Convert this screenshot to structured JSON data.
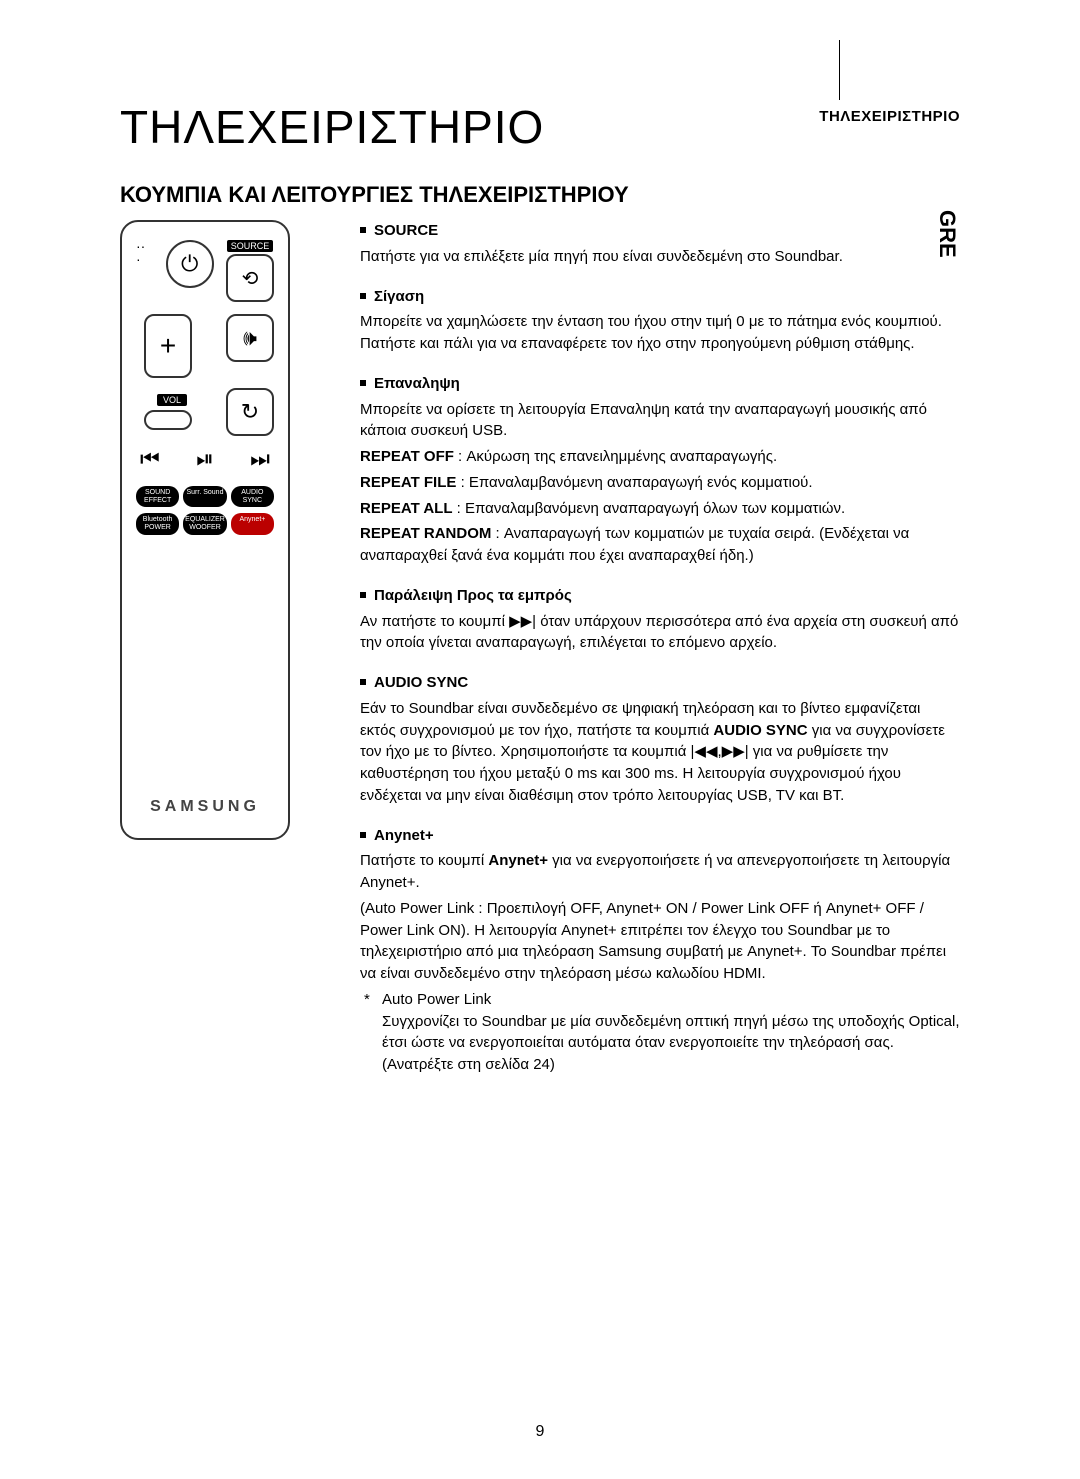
{
  "header_right": "ΤΗΛΕΧΕΙΡΙΣΤΗΡΙΟ",
  "side_tab": "GRE",
  "title": "ΤΗΛΕΧΕΙΡΙΣΤΗΡΙΟ",
  "subtitle": "ΚΟΥΜΠΙΑ ΚΑΙ ΛΕΙΤΟΥΡΓΙΕΣ ΤΗΛΕΧΕΙΡΙΣΤΗΡΙΟΥ",
  "remote": {
    "source_label": "SOURCE",
    "vol_label": "VOL",
    "brand": "SAMSUNG",
    "pills_row1": [
      "SOUND EFFECT",
      "Surr. Sound",
      "AUDIO SYNC"
    ],
    "pills_row2": [
      "Bluetooth POWER",
      "EQUALIZER WOOFER",
      "Anynet+"
    ]
  },
  "sections": {
    "source": {
      "label": "SOURCE",
      "body": "Πατήστε για να επιλέξετε μία πηγή που είναι συνδεδεμένη στο Soundbar."
    },
    "mute": {
      "label": "Σίγαση",
      "body": "Μπορείτε να χαμηλώσετε την ένταση του ήχου στην τιμή 0 με το πάτημα ενός κουμπιού. Πατήστε και πάλι για να επαναφέρετε τον ήχο στην προηγούμενη ρύθμιση στάθμης."
    },
    "repeat": {
      "label": "Επαναληψη",
      "body": "Μπορείτε να ορίσετε τη λειτουργία Επαναληψη κατά την αναπαραγωγή μουσικής από κάποια συσκευή USB.",
      "r_off_b": "REPEAT OFF",
      "r_off": " : Ακύρωση της επανειλημμένης αναπαραγωγής.",
      "r_file_b": "REPEAT FILE",
      "r_file": " : Επαναλαμβανόμενη αναπαραγωγή ενός κομματιού.",
      "r_all_b": "REPEAT ALL",
      "r_all": " : Επαναλαμβανόμενη αναπαραγωγή όλων των κομματιών.",
      "r_rand_b": "REPEAT RANDOM",
      "r_rand": " : Αναπαραγωγή των κομματιών με τυχαία σειρά. (Ενδέχεται να αναπαραχθεί ξανά ένα κομμάτι που έχει αναπαραχθεί ήδη.)"
    },
    "skip": {
      "label": "Παράλειψη Προς τα εμπρός",
      "body": "Αν πατήστε το κουμπί ▶▶| όταν υπάρχουν περισσότερα από ένα αρχεία στη συσκευή από την οποία γίνεται αναπαραγωγή, επιλέγεται το επόμενο αρχείο."
    },
    "audiosync": {
      "label": "AUDIO SYNC",
      "body1": "Εάν το Soundbar είναι συνδεδεμένο σε ψηφιακή τηλεόραση και το βίντεο εμφανίζεται εκτός συγχρονισμού με τον ήχο, πατήστε τα κουμπιά ",
      "bold1": "AUDIO SYNC",
      "body2": " για να συγχρονίσετε τον ήχο με το βίντεο. Χρησιμοποιήστε τα κουμπιά |◀◀,▶▶| για να ρυθμίσετε την καθυστέρηση του ήχου μεταξύ 0 ms και 300 ms. Η λειτουργία συγχρονισμού ήχου ενδέχεται να μην είναι διαθέσιμη στον τρόπο λειτουργίας USB, TV και BT."
    },
    "anynet": {
      "label": "Anynet+",
      "body1": "Πατήστε το κουμπί ",
      "bold1": "Anynet+",
      "body2": " για να ενεργοποιήσετε ή να απενεργοποιήσετε τη λειτουργία Anynet+.",
      "body3": "(Auto Power Link : Προεπιλογή OFF, Anynet+ ON / Power Link OFF ή Anynet+ OFF / Power Link ON). Η λειτουργία Anynet+ επιτρέπει τον έλεγχο του Soundbar με το τηλεχειριστήριο από μια τηλεόραση Samsung συμβατή με Anynet+. Το Soundbar πρέπει να είναι συνδεδεμένο στην τηλεόραση μέσω καλωδίου HDMI.",
      "note_star": "*",
      "note_title": "Auto Power Link",
      "note_body": "Συγχρονίζει το Soundbar με μία συνδεδεμένη οπτική πηγή μέσω της υποδοχής Optical, έτσι ώστε να ενεργοποιείται αυτόματα όταν ενεργοποιείτε την τηλεόρασή σας. (Ανατρέξτε στη σελίδα 24)"
    }
  },
  "page_number": "9"
}
